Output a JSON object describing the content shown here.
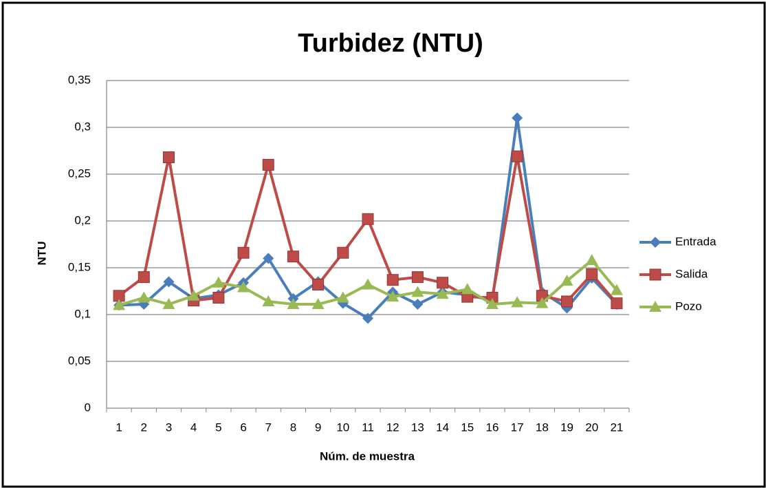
{
  "chart_data": {
    "type": "line",
    "title": "Turbidez (NTU)",
    "x_label": "Núm. de muestra",
    "y_label": "NTU",
    "categories": [
      "1",
      "2",
      "3",
      "4",
      "5",
      "6",
      "7",
      "8",
      "9",
      "10",
      "11",
      "12",
      "13",
      "14",
      "15",
      "16",
      "17",
      "18",
      "19",
      "20",
      "21"
    ],
    "series": [
      {
        "name": "Entrada",
        "color": "#4a7ebb",
        "marker": "diamond",
        "values": [
          0.11,
          0.111,
          0.135,
          0.117,
          0.121,
          0.134,
          0.16,
          0.117,
          0.135,
          0.112,
          0.096,
          0.124,
          0.111,
          0.124,
          0.121,
          0.115,
          0.31,
          0.124,
          0.107,
          0.139,
          0.111
        ]
      },
      {
        "name": "Salida",
        "color": "#be4b48",
        "marker": "square",
        "values": [
          0.12,
          0.14,
          0.268,
          0.115,
          0.118,
          0.166,
          0.26,
          0.162,
          0.132,
          0.166,
          0.202,
          0.137,
          0.14,
          0.134,
          0.119,
          0.118,
          0.269,
          0.12,
          0.114,
          0.143,
          0.112
        ]
      },
      {
        "name": "Pozo",
        "color": "#98b954",
        "marker": "triangle",
        "values": [
          0.11,
          0.118,
          0.111,
          0.12,
          0.134,
          0.129,
          0.114,
          0.111,
          0.111,
          0.118,
          0.132,
          0.119,
          0.124,
          0.122,
          0.127,
          0.111,
          0.113,
          0.112,
          0.136,
          0.158,
          0.126
        ]
      }
    ],
    "ylim": [
      0,
      0.35
    ],
    "yticks": [
      0,
      {
        "value": 0.05,
        "label": "0,05"
      },
      {
        "value": 0.1,
        "label": "0,1"
      },
      {
        "value": 0.15,
        "label": "0,15"
      },
      {
        "value": 0.2,
        "label": "0,2"
      },
      {
        "value": 0.25,
        "label": "0,25"
      },
      {
        "value": 0.3,
        "label": "0,3"
      },
      {
        "value": 0.35,
        "label": "0,35"
      }
    ],
    "grid": true,
    "legend": "right"
  }
}
